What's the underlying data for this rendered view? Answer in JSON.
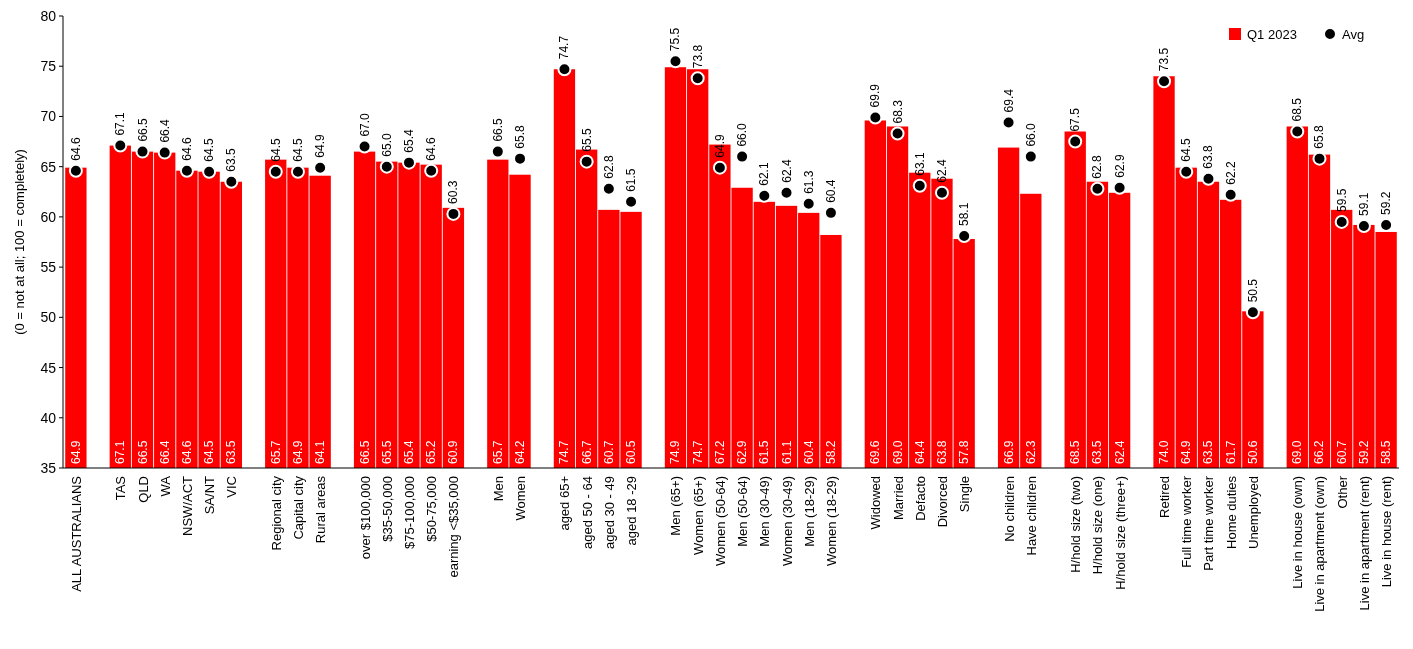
{
  "chart_data": {
    "type": "bar",
    "ylabel": "(0 = not at all; 100 = completely)",
    "ylim": [
      35,
      80
    ],
    "yticks": [
      35,
      40,
      45,
      50,
      55,
      60,
      65,
      70,
      75,
      80
    ],
    "grid": false,
    "legend": "top right",
    "categories": [
      "ALL AUSTRALIANS",
      null,
      "TAS",
      "QLD",
      "WA",
      "NSW/ACT",
      "SA/NT",
      "VIC",
      null,
      "Regional city",
      "Capital city",
      "Rural areas",
      null,
      "over $100,000",
      "$35-50,000",
      "$75-100,000",
      "$50-75,000",
      "earning <$35,000",
      null,
      "Men",
      "Women",
      null,
      "aged 65+",
      "aged 50 - 64",
      "aged 30 - 49",
      "aged 18 -29",
      null,
      "Men (65+)",
      "Women (65+)",
      "Women (50-64)",
      "Men (50-64)",
      "Men (30-49)",
      "Women (30-49)",
      "Men (18-29)",
      "Women (18-29)",
      null,
      "Widowed",
      "Married",
      "Defacto",
      "Divorced",
      "Single",
      null,
      "No children",
      "Have children",
      null,
      "H/hold size (two)",
      "H/hold size (one)",
      "H/hold size (three+)",
      null,
      "Retired",
      "Full time worker",
      "Part time worker",
      "Home duties",
      "Unemployed",
      null,
      "Live in house (own)",
      "Live in apartment (own)",
      "Other",
      "Live in apartment (rent)",
      "Live in house (rent)"
    ],
    "series": [
      {
        "name": "Q1 2023",
        "color": "#ff0000",
        "values": [
          64.9,
          null,
          67.1,
          66.5,
          66.4,
          64.6,
          64.5,
          63.5,
          null,
          65.7,
          64.9,
          64.1,
          null,
          66.5,
          65.5,
          65.4,
          65.2,
          60.9,
          null,
          65.7,
          64.2,
          null,
          74.7,
          66.7,
          60.7,
          60.5,
          null,
          74.9,
          74.7,
          67.2,
          62.9,
          61.5,
          61.1,
          60.4,
          58.2,
          null,
          69.6,
          69.0,
          64.4,
          63.8,
          57.8,
          null,
          66.9,
          62.3,
          null,
          68.5,
          63.5,
          62.4,
          null,
          74.0,
          64.9,
          63.5,
          61.7,
          50.6,
          null,
          69.0,
          66.2,
          60.7,
          59.2,
          58.5
        ],
        "value_labels": [
          "64.9",
          null,
          "67.1",
          "66.5",
          "66.4",
          "64.6",
          "64.5",
          "63.5",
          null,
          "65.7",
          "64.9",
          "64.1",
          null,
          "66.5",
          "65.5",
          "65.4",
          "65.2",
          "60.9",
          null,
          "65.7",
          "64.2",
          null,
          "74.7",
          "66.7",
          "60.7",
          "60.5",
          null,
          "74.9",
          "74.7",
          "67.2",
          "62.9",
          "61.5",
          "61.1",
          "60.4",
          "58.2",
          null,
          "69.6",
          "69.0",
          "64.4",
          "63.8",
          "57.8",
          null,
          "66.9",
          "62.3",
          null,
          "68.5",
          "63.5",
          "62.4",
          null,
          "74.0",
          "64.9",
          "63.5",
          "61.7",
          "50.6",
          null,
          "69.0",
          "66.2",
          "60.7",
          "59.2",
          "58.5"
        ]
      },
      {
        "name": "Avg",
        "type": "scatter",
        "color": "#000000",
        "marker": "circle",
        "values": [
          64.6,
          null,
          67.1,
          66.5,
          66.4,
          64.6,
          64.5,
          63.5,
          null,
          64.5,
          64.5,
          64.9,
          null,
          67.0,
          65.0,
          65.4,
          64.6,
          60.3,
          null,
          66.5,
          65.8,
          null,
          74.7,
          65.5,
          62.8,
          61.5,
          null,
          75.5,
          73.8,
          64.9,
          66.0,
          62.1,
          62.4,
          61.3,
          60.4,
          null,
          69.9,
          68.3,
          63.1,
          62.4,
          58.1,
          null,
          69.4,
          66.0,
          null,
          67.5,
          62.8,
          62.9,
          null,
          73.5,
          64.5,
          63.8,
          62.2,
          50.5,
          null,
          68.5,
          65.8,
          59.5,
          59.1,
          59.2
        ],
        "value_labels": [
          "64.6",
          null,
          "67.1",
          "66.5",
          "66.4",
          "64.6",
          "64.5",
          "63.5",
          null,
          "64.5",
          "64.5",
          "64.9",
          null,
          "67.0",
          "65.0",
          "65.4",
          "64.6",
          "60.3",
          null,
          "66.5",
          "65.8",
          null,
          "74.7",
          "65.5",
          "62.8",
          "61.5",
          null,
          "75.5",
          "73.8",
          "64.9",
          "66.0",
          "62.1",
          "62.4",
          "61.3",
          "60.4",
          null,
          "69.9",
          "68.3",
          "63.1",
          "62.4",
          "58.1",
          null,
          "69.4",
          "66.0",
          null,
          "67.5",
          "62.8",
          "62.9",
          null,
          "73.5",
          "64.5",
          "63.8",
          "62.2",
          "50.5",
          null,
          "68.5",
          "65.8",
          "59.5",
          "59.1",
          "59.2"
        ]
      }
    ]
  }
}
